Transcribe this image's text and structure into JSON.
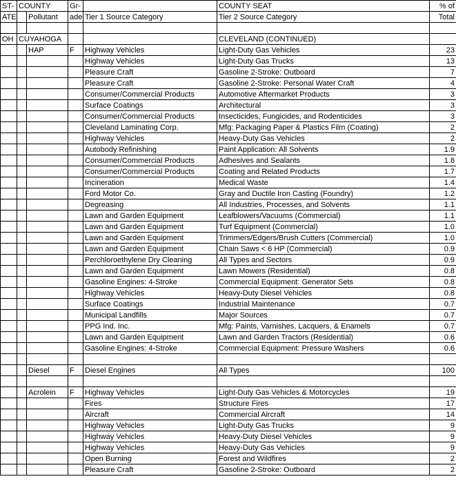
{
  "headers": {
    "row1": {
      "state": "ST-",
      "county": "COUNTY",
      "grade": "Gr-",
      "countySeat": "COUNTY SEAT",
      "pct": "% of"
    },
    "row2": {
      "state": "ATE",
      "pollutant": "Pollutant",
      "grade": "ade",
      "tier1": "Tier 1 Source Category",
      "tier2": "Tier 2 Source Category",
      "pct": "Total"
    }
  },
  "state": "OH",
  "county": "CUYAHOGA",
  "countySeat": "CLEVELAND (CONTINUED)",
  "groups": [
    {
      "pollutant": "HAP",
      "grade": "F",
      "rows": [
        {
          "t1": "Highway Vehicles",
          "t2": "Light-Duty Gas Vehicles",
          "p": "23"
        },
        {
          "t1": "Highway Vehicles",
          "t2": "Light-Duty Gas Trucks",
          "p": "13"
        },
        {
          "t1": "Pleasure Craft",
          "t2": "Gasoline 2-Stroke: Outboard",
          "p": "7"
        },
        {
          "t1": "Pleasure Craft",
          "t2": "Gasoline 2-Stroke: Personal Water Craft",
          "p": "4"
        },
        {
          "t1": "Consumer/Commercial Products",
          "t2": "Automotive Aftermarket Products",
          "p": "3"
        },
        {
          "t1": "Surface Coatings",
          "t2": "Architectural",
          "p": "3"
        },
        {
          "t1": "Consumer/Commercial Products",
          "t2": "Insecticides, Fungicides, and Rodenticides",
          "p": "3"
        },
        {
          "t1": "Cleveland Laminating Corp.",
          "t2": "Mfg: Packaging Paper & Plastics Film (Coating)",
          "p": "2"
        },
        {
          "t1": "Highway Vehicles",
          "t2": "Heavy-Duty Gas Vehicles",
          "p": "2"
        },
        {
          "t1": "Autobody Refinishing",
          "t2": "Paint Application: All Solvents",
          "p": "1.9"
        },
        {
          "t1": "Consumer/Commercial Products",
          "t2": "Adhesives and Sealants",
          "p": "1.8"
        },
        {
          "t1": "Consumer/Commercial Products",
          "t2": "Coating and Related Products",
          "p": "1.7"
        },
        {
          "t1": "Incineration",
          "t2": "Medical Waste",
          "p": "1.4"
        },
        {
          "t1": "Ford Motor Co.",
          "t2": "Gray and Ductile Iron Casting (Foundry)",
          "p": "1.2"
        },
        {
          "t1": "Degreasing",
          "t2": "All Industries, Processes, and Solvents",
          "p": "1.1"
        },
        {
          "t1": "Lawn and Garden Equipment",
          "t2": "Leafblowers/Vacuums (Commercial)",
          "p": "1.1"
        },
        {
          "t1": "Lawn and Garden Equipment",
          "t2": "Turf Equipment (Commercial)",
          "p": "1.0"
        },
        {
          "t1": "Lawn and Garden Equipment",
          "t2": "Trimmers/Edgers/Brush Cutters (Commercial)",
          "p": "1.0"
        },
        {
          "t1": "Lawn and Garden Equipment",
          "t2": "Chain Saws < 6 HP (Commercial)",
          "p": "0.9"
        },
        {
          "t1": "Perchloroethylene Dry Cleaning",
          "t2": "All Types and Sectors",
          "p": "0.9"
        },
        {
          "t1": "Lawn and Garden Equipment",
          "t2": "Lawn Mowers (Residential)",
          "p": "0.8"
        },
        {
          "t1": "Gasoline Engines: 4-Stroke",
          "t2": "Commercial Equipment: Generator Sets",
          "p": "0.8"
        },
        {
          "t1": "Highway Vehicles",
          "t2": "Heavy-Duty Diesel Vehicles",
          "p": "0.8"
        },
        {
          "t1": "Surface Coatings",
          "t2": "Industrial Maintenance",
          "p": "0.7"
        },
        {
          "t1": "Municipal Landfills",
          "t2": "Major Sources",
          "p": "0.7"
        },
        {
          "t1": "PPG Ind. Inc.",
          "t2": "Mfg: Paints, Varnishes, Lacquers, & Enamels",
          "p": "0.7"
        },
        {
          "t1": "Lawn and Garden Equipment",
          "t2": "Lawn and Garden Tractors (Residential)",
          "p": "0.6"
        },
        {
          "t1": "Gasoline Engines: 4-Stroke",
          "t2": "Commercial Equipment: Pressure Washers",
          "p": "0.6"
        }
      ]
    },
    {
      "pollutant": "Diesel",
      "grade": "F",
      "rows": [
        {
          "t1": "Diesel Engines",
          "t2": "All Types",
          "p": "100"
        }
      ]
    },
    {
      "pollutant": "Acrolein",
      "grade": "F",
      "rows": [
        {
          "t1": "Highway Vehicles",
          "t2": "Light-Duty Gas Vehicles & Motorcycles",
          "p": "19"
        },
        {
          "t1": "Fires",
          "t2": "Structure Fires",
          "p": "17"
        },
        {
          "t1": "Aircraft",
          "t2": "Commercial Aircraft",
          "p": "14"
        },
        {
          "t1": "Highway Vehicles",
          "t2": "Light-Duty Gas Trucks",
          "p": "9"
        },
        {
          "t1": "Highway Vehicles",
          "t2": "Heavy-Duty Diesel Vehicles",
          "p": "9"
        },
        {
          "t1": "Highway Vehicles",
          "t2": "Heavy-Duty Gas Vehicles",
          "p": "9"
        },
        {
          "t1": "Open Burning",
          "t2": "Forest and Wildfires",
          "p": "2"
        },
        {
          "t1": "Pleasure Craft",
          "t2": "Gasoline 2-Stroke: Outboard",
          "p": "2"
        }
      ]
    }
  ]
}
